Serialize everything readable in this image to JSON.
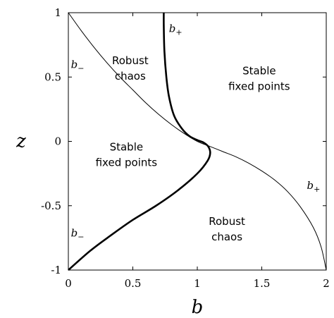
{
  "chart_data": {
    "type": "line",
    "title": "",
    "xlabel": "b",
    "ylabel": "z",
    "xlim": [
      0,
      2
    ],
    "ylim": [
      -1,
      1
    ],
    "grid": false,
    "x_ticks": [
      0,
      0.5,
      1,
      1.5,
      2
    ],
    "x_tick_labels": [
      "0",
      "0.5",
      "1",
      "1.5",
      "2"
    ],
    "y_ticks": [
      1,
      0.5,
      0,
      -0.5,
      -1
    ],
    "y_tick_labels": [
      "1",
      "0.5",
      "0",
      "-0.5",
      "-1"
    ],
    "series": [
      {
        "key": "thin",
        "style": "thin",
        "points": [
          [
            0.0,
            1.0
          ],
          [
            0.1,
            0.86
          ],
          [
            0.2,
            0.73
          ],
          [
            0.3,
            0.61
          ],
          [
            0.4,
            0.5
          ],
          [
            0.5,
            0.4
          ],
          [
            0.6,
            0.3
          ],
          [
            0.7,
            0.21
          ],
          [
            0.8,
            0.13
          ],
          [
            0.9,
            0.06
          ],
          [
            1.0,
            0.0
          ],
          [
            1.1,
            -0.04
          ],
          [
            1.2,
            -0.08
          ],
          [
            1.3,
            -0.12
          ],
          [
            1.4,
            -0.17
          ],
          [
            1.5,
            -0.23
          ],
          [
            1.6,
            -0.3
          ],
          [
            1.7,
            -0.39
          ],
          [
            1.8,
            -0.51
          ],
          [
            1.9,
            -0.67
          ],
          [
            1.96,
            -0.82
          ],
          [
            2.0,
            -1.0
          ]
        ]
      },
      {
        "key": "thick",
        "style": "thick",
        "points": [
          [
            0.74,
            1.0
          ],
          [
            0.74,
            0.9
          ],
          [
            0.745,
            0.7
          ],
          [
            0.76,
            0.5
          ],
          [
            0.78,
            0.35
          ],
          [
            0.82,
            0.2
          ],
          [
            0.88,
            0.1
          ],
          [
            0.94,
            0.04
          ],
          [
            1.0,
            0.01
          ],
          [
            1.05,
            -0.01
          ],
          [
            1.085,
            -0.04
          ],
          [
            1.1,
            -0.09
          ],
          [
            1.08,
            -0.15
          ],
          [
            1.0,
            -0.25
          ],
          [
            0.85,
            -0.38
          ],
          [
            0.68,
            -0.5
          ],
          [
            0.5,
            -0.61
          ],
          [
            0.33,
            -0.73
          ],
          [
            0.17,
            -0.85
          ],
          [
            0.0,
            -1.0
          ]
        ]
      }
    ],
    "curve_labels": [
      {
        "name": "b",
        "sub": "+",
        "x": 0.78,
        "y": 0.85
      },
      {
        "name": "b",
        "sub": "−",
        "x": 0.02,
        "y": 0.57
      },
      {
        "name": "b",
        "sub": "+",
        "x": 1.85,
        "y": -0.37
      },
      {
        "name": "b",
        "sub": "−",
        "x": 0.02,
        "y": -0.74
      }
    ],
    "region_labels": [
      {
        "lines": [
          "Robust",
          "chaos"
        ],
        "x": 0.48,
        "y": 0.6
      },
      {
        "lines": [
          "Stable",
          "fixed points"
        ],
        "x": 1.48,
        "y": 0.52
      },
      {
        "lines": [
          "Stable",
          "fixed points"
        ],
        "x": 0.45,
        "y": -0.07
      },
      {
        "lines": [
          "Robust",
          "chaos"
        ],
        "x": 1.23,
        "y": -0.65
      }
    ]
  }
}
